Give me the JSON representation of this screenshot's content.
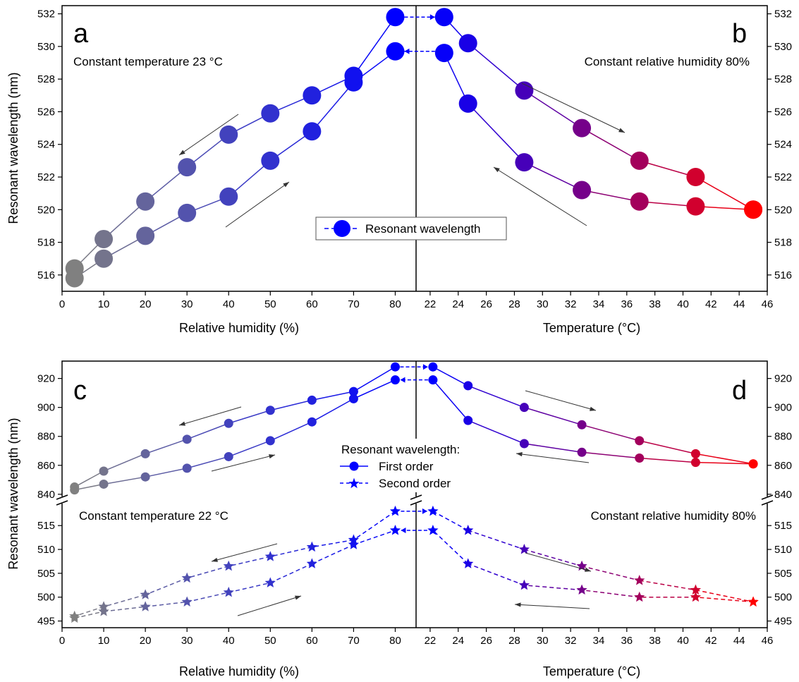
{
  "chart_data": [
    {
      "panel": "a",
      "type": "line",
      "xlabel": "Relative humidity (%)",
      "ylabel": "Resonant wavelength (nm)",
      "xlim": [
        0,
        85
      ],
      "ylim": [
        515,
        532.5
      ],
      "xticks": [
        0,
        10,
        20,
        30,
        40,
        50,
        60,
        70,
        80
      ],
      "yticks": [
        516,
        518,
        520,
        522,
        524,
        526,
        528,
        530,
        532
      ],
      "annotation": "Constant temperature 23 °C",
      "series": [
        {
          "x": [
            3,
            10,
            20,
            30,
            40,
            50,
            60,
            70,
            80
          ],
          "values": [
            515.8,
            517.0,
            518.4,
            519.8,
            520.8,
            523.0,
            524.8,
            527.8,
            529.7
          ]
        },
        {
          "x": [
            80,
            70,
            60,
            50,
            40,
            30,
            20,
            10,
            3
          ],
          "values": [
            531.8,
            528.2,
            527.0,
            525.9,
            524.6,
            522.6,
            520.5,
            518.2,
            516.4
          ]
        }
      ],
      "legend": {
        "label": "Resonant wavelength",
        "marker": "circle",
        "style": "solid"
      }
    },
    {
      "panel": "b",
      "type": "line",
      "xlabel": "Temperature (°C)",
      "ylabel": "",
      "xlim": [
        21,
        46
      ],
      "ylim": [
        515,
        532.5
      ],
      "xticks": [
        22,
        24,
        26,
        28,
        30,
        32,
        34,
        36,
        38,
        40,
        42,
        44,
        46
      ],
      "yticks": [
        516,
        518,
        520,
        522,
        524,
        526,
        528,
        530,
        532
      ],
      "annotation": "Constant relative humidity 80%",
      "series": [
        {
          "x": [
            23,
            24.7,
            28.7,
            32.8,
            36.9,
            40.9,
            45
          ],
          "values": [
            531.8,
            530.2,
            527.3,
            525.0,
            523.0,
            522.0,
            520.0
          ]
        },
        {
          "x": [
            45,
            40.9,
            36.9,
            32.8,
            28.7,
            24.7,
            23
          ],
          "values": [
            520.0,
            520.2,
            520.5,
            521.2,
            522.9,
            526.5,
            529.6
          ]
        }
      ]
    },
    {
      "panel": "c",
      "type": "line",
      "xlabel": "Relative humidity (%)",
      "ylabel": "Resonant wavelength (nm)",
      "xlim": [
        0,
        85
      ],
      "ylim_first_order": [
        838,
        932
      ],
      "ylim_second_order": [
        494,
        520
      ],
      "yticks_first_order": [
        840,
        860,
        880,
        900,
        920
      ],
      "yticks_second_order": [
        495,
        500,
        505,
        510,
        515
      ],
      "annotation": "Constant temperature 22 °C",
      "series": [
        {
          "name": "First order",
          "x": [
            3,
            10,
            20,
            30,
            40,
            50,
            60,
            70,
            80
          ],
          "values": [
            843,
            847,
            852,
            858,
            866,
            877,
            890,
            906,
            919
          ]
        },
        {
          "name": "First order",
          "x": [
            80,
            70,
            60,
            50,
            40,
            30,
            20,
            10,
            3
          ],
          "values": [
            928,
            911,
            905,
            898,
            889,
            878,
            868,
            856,
            845
          ]
        },
        {
          "name": "Second order",
          "x": [
            3,
            10,
            20,
            30,
            40,
            50,
            60,
            70,
            80
          ],
          "values": [
            495.6,
            497.0,
            498.0,
            499.0,
            501.0,
            503.0,
            507.0,
            511.0,
            514.0
          ]
        },
        {
          "name": "Second order",
          "x": [
            80,
            70,
            60,
            50,
            40,
            30,
            20,
            10,
            3
          ],
          "values": [
            518.0,
            512.0,
            510.5,
            508.5,
            506.5,
            504.0,
            500.5,
            498.0,
            496.0
          ]
        }
      ],
      "legend": {
        "title": "Resonant wavelength:",
        "entries": [
          "First order",
          "Second order"
        ]
      }
    },
    {
      "panel": "d",
      "type": "line",
      "xlabel": "Temperature (°C)",
      "ylabel": "",
      "xlim": [
        21,
        46
      ],
      "annotation": "Constant relative humidity 80%",
      "series": [
        {
          "name": "First order",
          "x": [
            22.2,
            24.7,
            28.7,
            32.8,
            36.9,
            40.9,
            45
          ],
          "values": [
            928,
            915,
            900,
            888,
            877,
            868,
            861
          ]
        },
        {
          "name": "First order",
          "x": [
            45,
            40.9,
            36.9,
            32.8,
            28.7,
            24.7,
            22.2
          ],
          "values": [
            861,
            862,
            865,
            869,
            875,
            891,
            919
          ]
        },
        {
          "name": "Second order",
          "x": [
            22.2,
            24.7,
            28.7,
            32.8,
            36.9,
            40.9,
            45
          ],
          "values": [
            518.0,
            514.0,
            510.0,
            506.5,
            503.5,
            501.5,
            499.0
          ]
        },
        {
          "name": "Second order",
          "x": [
            45,
            40.9,
            36.9,
            32.8,
            28.7,
            24.7,
            22.2
          ],
          "values": [
            499.0,
            500.0,
            500.0,
            501.5,
            502.5,
            507.0,
            514.0
          ]
        }
      ]
    }
  ],
  "panels": {
    "a": {
      "letter": "a",
      "annotation": "Constant temperature 23 °C",
      "xlabel": "Relative humidity (%)"
    },
    "b": {
      "letter": "b",
      "annotation": "Constant relative humidity 80%",
      "xlabel": "Temperature (°C)"
    },
    "c": {
      "letter": "c",
      "annotation": "Constant temperature 22 °C",
      "xlabel": "Relative humidity (%)"
    },
    "d": {
      "letter": "d",
      "annotation": "Constant relative humidity 80%",
      "xlabel": "Temperature (°C)"
    }
  },
  "ylabel": "Resonant wavelength (nm)",
  "legend_top": {
    "label": "Resonant wavelength"
  },
  "legend_bottom": {
    "title": "Resonant wavelength:",
    "first": "First order",
    "second": "Second order"
  },
  "colors": {
    "grey": "#808080",
    "blue": "#0000ff",
    "red": "#ff0000",
    "arrow": "#333333"
  }
}
